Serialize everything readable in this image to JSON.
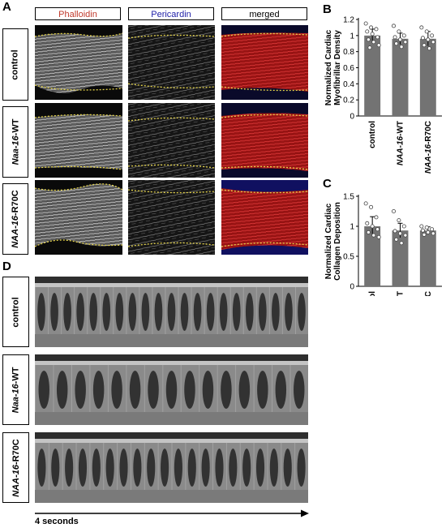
{
  "panel_A": {
    "letter": "A",
    "columns": [
      "Phalloidin",
      "Pericardin",
      "merged"
    ],
    "column_colors": [
      "#c0392b",
      "#1f1fa8",
      "#000000"
    ],
    "rows": [
      {
        "pre": "",
        "ital": "",
        "post": "control"
      },
      {
        "pre": "",
        "ital": "Naa-16",
        "post": "-WT"
      },
      {
        "pre": "",
        "ital": "NAA-16",
        "post": "-R70C"
      }
    ]
  },
  "panel_D": {
    "letter": "D",
    "rows": [
      {
        "pre": "",
        "ital": "",
        "post": "control"
      },
      {
        "pre": "",
        "ital": "Naa-16",
        "post": "-WT"
      },
      {
        "pre": "",
        "ital": "NAA-16",
        "post": "-R70C"
      }
    ],
    "time_label": "4 seconds"
  },
  "chart_data": [
    {
      "panel": "B",
      "type": "bar",
      "ylabel": "Normalized Cardiac Myofibrillar Density",
      "categories": [
        "control",
        "NAA-16-WT",
        "NAA-16-R70C"
      ],
      "values": [
        1.0,
        0.96,
        0.96
      ],
      "errors": [
        0.08,
        0.07,
        0.09
      ],
      "points": [
        [
          1.15,
          1.1,
          1.08,
          1.05,
          1.02,
          0.98,
          0.95,
          0.92,
          0.88,
          0.85
        ],
        [
          1.12,
          1.05,
          1.0,
          0.98,
          0.95,
          0.92,
          0.9,
          0.86
        ],
        [
          1.1,
          1.05,
          1.0,
          0.97,
          0.95,
          0.92,
          0.88,
          0.84
        ]
      ],
      "ylim": [
        0,
        1.2
      ],
      "yticks": [
        0,
        0.2,
        0.4,
        0.6,
        0.8,
        1,
        1.2
      ]
    },
    {
      "panel": "C",
      "type": "bar",
      "ylabel": "Normalized Cardiac Collagen Deposition",
      "categories": [
        "control",
        "NAA-16-WT",
        "NAA-16-R70C"
      ],
      "values": [
        1.0,
        0.93,
        0.93
      ],
      "errors": [
        0.16,
        0.12,
        0.06
      ],
      "points": [
        [
          1.38,
          1.32,
          1.15,
          1.05,
          1.0,
          0.95,
          0.9,
          0.85,
          0.82
        ],
        [
          1.25,
          1.1,
          1.0,
          0.92,
          0.88,
          0.85,
          0.78,
          0.72
        ],
        [
          1.0,
          0.98,
          0.95,
          0.93,
          0.9,
          0.88,
          0.86
        ]
      ],
      "ylim": [
        0,
        1.5
      ],
      "yticks": [
        0,
        0.5,
        1,
        1.5
      ]
    }
  ]
}
